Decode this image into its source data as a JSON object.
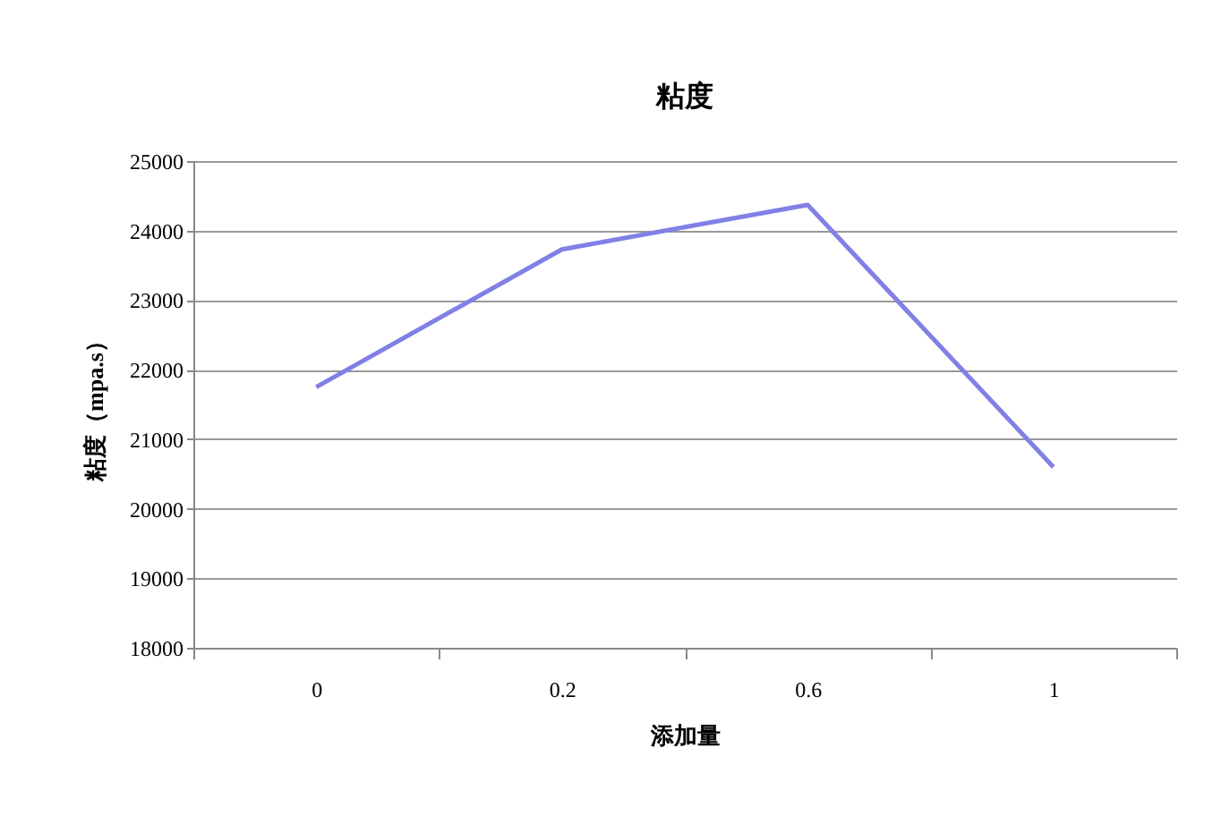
{
  "chart_data": {
    "type": "line",
    "title": "粘度",
    "xlabel": "添加量",
    "ylabel": "粘度（mpa.s）",
    "categories": [
      "0",
      "0.2",
      "0.6",
      "1"
    ],
    "series": [
      {
        "color": "#8080e6",
        "values": [
          21750,
          23730,
          24370,
          20600
        ]
      }
    ],
    "ylim": [
      18000,
      25000
    ],
    "yticks": [
      18000,
      19000,
      20000,
      21000,
      22000,
      23000,
      24000,
      25000
    ],
    "grid": "y",
    "legend": false,
    "marker": "none",
    "line_style": "solid"
  }
}
